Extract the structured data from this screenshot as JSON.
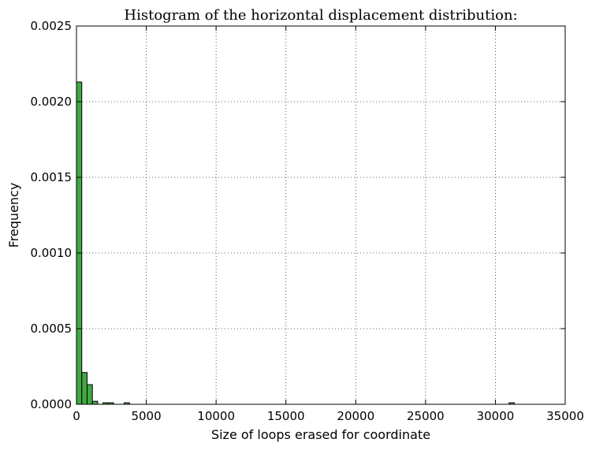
{
  "chart_data": {
    "type": "bar",
    "title": "Histogram of the horizontal displacement distribution:",
    "xlabel": "Size of loops erased for coordinate",
    "ylabel": "Frequency",
    "xlim": [
      0,
      35000
    ],
    "ylim": [
      0,
      0.0025
    ],
    "xticks": [
      0,
      5000,
      10000,
      15000,
      20000,
      25000,
      30000,
      35000
    ],
    "xtick_labels": [
      "0",
      "5000",
      "10000",
      "15000",
      "20000",
      "25000",
      "30000",
      "35000"
    ],
    "yticks": [
      0,
      0.0005,
      0.001,
      0.0015,
      0.002,
      0.0025
    ],
    "ytick_labels": [
      "0.0000",
      "0.0005",
      "0.0010",
      "0.0015",
      "0.0020",
      "0.0025"
    ],
    "grid": true,
    "bar_color": "#2ca02c",
    "bins": [
      {
        "x0": 0,
        "x1": 380,
        "value": 0.00213
      },
      {
        "x0": 380,
        "x1": 760,
        "value": 0.00021
      },
      {
        "x0": 760,
        "x1": 1140,
        "value": 0.00013
      },
      {
        "x0": 1140,
        "x1": 1520,
        "value": 2e-05
      },
      {
        "x0": 1900,
        "x1": 2280,
        "value": 1e-05
      },
      {
        "x0": 2280,
        "x1": 2660,
        "value": 1e-05
      },
      {
        "x0": 3420,
        "x1": 3800,
        "value": 1e-05
      },
      {
        "x0": 30980,
        "x1": 31360,
        "value": 1e-05
      }
    ]
  }
}
